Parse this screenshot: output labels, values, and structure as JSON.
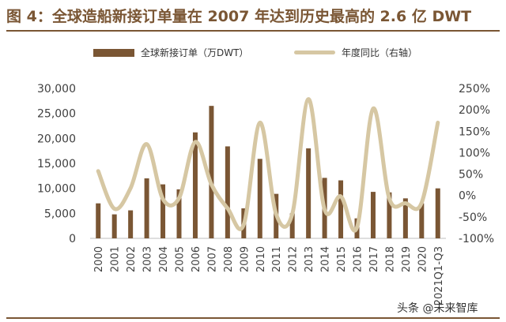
{
  "title": "图 4：全球造船新接订单量在 2007 年达到历史最高的 2.6 亿 DWT",
  "watermark": "头条 @未来智库",
  "chart_data": {
    "type": "bar",
    "categories": [
      "2000",
      "2001",
      "2002",
      "2003",
      "2004",
      "2005",
      "2006",
      "2007",
      "2008",
      "2009",
      "2010",
      "2011",
      "2012",
      "2013",
      "2014",
      "2015",
      "2016",
      "2017",
      "2018",
      "2019",
      "2020",
      "2021Q1-Q3"
    ],
    "series": [
      {
        "name": "全球新接订单（万DWT）",
        "type": "bar",
        "axis": "left",
        "values": [
          7000,
          4800,
          5600,
          12000,
          10800,
          9800,
          21200,
          26500,
          18400,
          6000,
          15900,
          8900,
          5000,
          18000,
          12100,
          11600,
          4000,
          9300,
          9200,
          8000,
          7000,
          10000
        ]
      },
      {
        "name": "年度同比（右轴）",
        "type": "line",
        "axis": "right",
        "values": [
          0.57,
          -0.31,
          0.17,
          1.2,
          -0.08,
          -0.06,
          1.25,
          0.26,
          -0.3,
          -0.68,
          1.7,
          -0.43,
          -0.43,
          2.25,
          -0.33,
          -0.02,
          -0.75,
          2.03,
          -0.07,
          -0.18,
          -0.17,
          1.7
        ]
      }
    ],
    "y_left": {
      "ticks": [
        "0",
        "5,000",
        "10,000",
        "15,000",
        "20,000",
        "25,000",
        "30,000"
      ],
      "range": [
        0,
        30000
      ]
    },
    "y_right": {
      "ticks": [
        "-100%",
        "-50%",
        "0%",
        "50%",
        "100%",
        "150%",
        "200%",
        "250%"
      ],
      "range": [
        -1.0,
        2.5
      ]
    },
    "colors": {
      "bar": "#7a5634",
      "line": "#d6c7a3"
    },
    "legend_position": "top"
  }
}
